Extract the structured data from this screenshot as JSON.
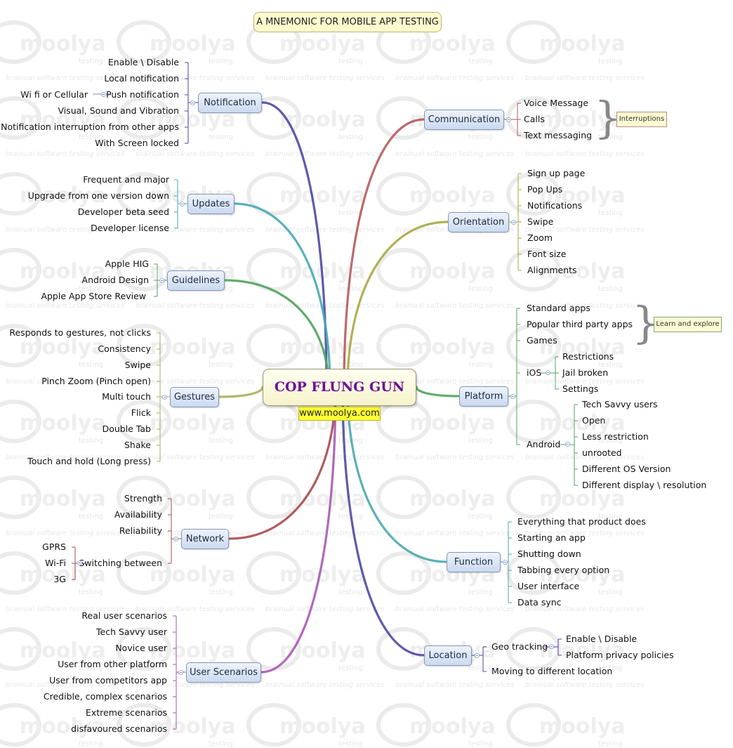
{
  "title": "A MNEMONIC FOR MOBILE APP TESTING",
  "central": {
    "label": "COP FLUNG GUN",
    "link": "www.moolya.com"
  },
  "watermark": {
    "logo": "moolya",
    "sub": "testing",
    "tagline": "brainual software testing services"
  },
  "branches": {
    "notification": {
      "label": "Notification",
      "color": "#4d46a6",
      "items": [
        "Enable \\ Disable",
        "Local notification",
        "Push notification",
        "Visual, Sound and Vibration",
        "Notification interruption from other apps",
        "With Screen locked"
      ],
      "push_sub": "Wi fi or Cellular"
    },
    "updates": {
      "label": "Updates",
      "color": "#46a8b4",
      "items": [
        "Frequent and major",
        "Upgrade from one version down",
        "Developer beta seed",
        "Developer license"
      ]
    },
    "guidelines": {
      "label": "Guidelines",
      "color": "#4fa25a",
      "items": [
        "Apple HIG",
        "Android Design",
        "Apple App Store Review"
      ]
    },
    "gestures": {
      "label": "Gestures",
      "color": "#b0ac5a",
      "items": [
        "Responds to gestures, not clicks",
        "Consistency",
        "Swipe",
        "Pinch Zoom (Pinch open)",
        "Multi touch",
        "Flick",
        "Double Tab",
        "Shake",
        "Touch and hold (Long press)"
      ]
    },
    "network": {
      "label": "Network",
      "color": "#a84a4c",
      "items": [
        "Strength",
        "Availability",
        "Reliability",
        "Switching between"
      ],
      "switch_sub": [
        "GPRS",
        "Wi-Fi",
        "3G"
      ]
    },
    "user_scenarios": {
      "label": "User Scenarios",
      "color": "#a957b6",
      "items": [
        "Real user scenarios",
        "Tech Savvy user",
        "Novice user",
        "User from other platform",
        "User from competitors app",
        "Credible, complex scenarios",
        "Extreme scenarios",
        "disfavoured scenarios"
      ]
    },
    "communication": {
      "label": "Communication",
      "color": "#b55a5a",
      "items": [
        "Voice Message",
        "Calls",
        "Text messaging"
      ],
      "note": "Interruptions"
    },
    "orientation": {
      "label": "Orientation",
      "color": "#a9a842",
      "items": [
        "Sign up page",
        "Pop Ups",
        "Notifications",
        "Swipe",
        "Zoom",
        "Font size",
        "Alignments"
      ]
    },
    "platform": {
      "label": "Platform",
      "color": "#4ea55a",
      "items": [
        "Standard apps",
        "Popular third party apps",
        "Games",
        "iOS",
        "Android"
      ],
      "ios_sub": [
        "Restrictions",
        "Jail broken",
        "Settings"
      ],
      "android_sub": [
        "Tech Savvy users",
        "Open",
        "Less restriction",
        "unrooted",
        "Different OS Version",
        "Different display  \\ resolution"
      ],
      "note": "Learn and explore"
    },
    "function": {
      "label": "Function",
      "color": "#4aa7ae",
      "items": [
        "Everything that product does",
        "Starting an app",
        "Shutting down",
        "Tabbing every option",
        "User interface",
        "Data sync"
      ]
    },
    "location": {
      "label": "Location",
      "color": "#4d47a4",
      "items": [
        "Geo tracking",
        "Moving to different location"
      ],
      "geo_sub": [
        "Enable \\ Disable",
        "Platform privacy policies"
      ]
    }
  }
}
